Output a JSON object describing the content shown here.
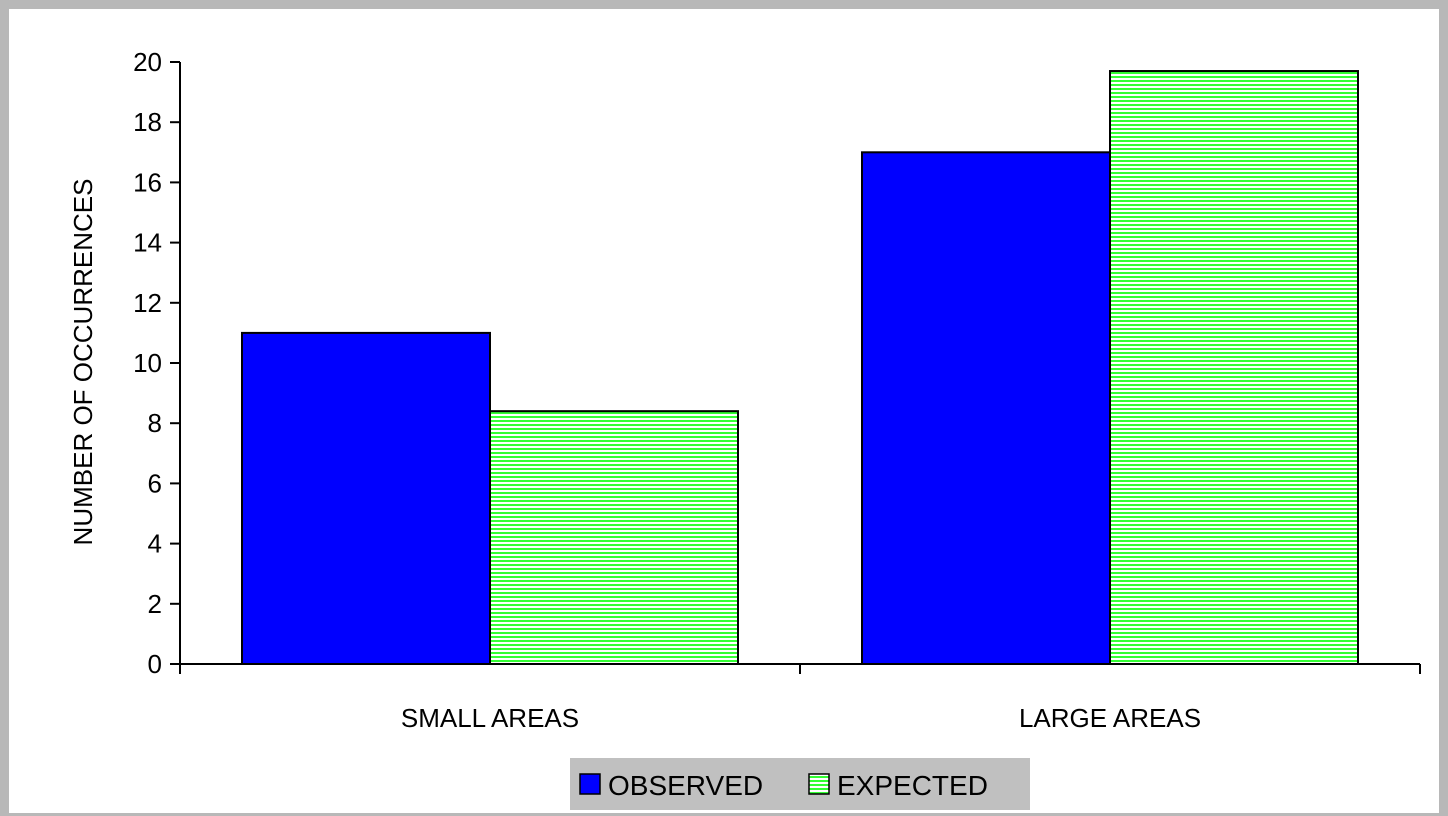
{
  "chart_data": {
    "type": "bar",
    "categories": [
      "SMALL AREAS",
      "LARGE AREAS"
    ],
    "series": [
      {
        "name": "OBSERVED",
        "values": [
          11,
          17
        ],
        "color": "#0000ff",
        "pattern": "solid"
      },
      {
        "name": "EXPECTED",
        "values": [
          8.4,
          19.7
        ],
        "color": "#33ff33",
        "pattern": "horizontal-stripes"
      }
    ],
    "ylabel": "NUMBER OF OCCURRENCES",
    "xlabel": "",
    "ylim": [
      0,
      20
    ],
    "yticks": [
      0,
      2,
      4,
      6,
      8,
      10,
      12,
      14,
      16,
      18,
      20
    ],
    "grid": false,
    "legend": "bottom-center",
    "colors": {
      "frame": "#b8b8b8",
      "legend_bg": "#c0c0c0",
      "stripe": "#ffffff"
    }
  }
}
